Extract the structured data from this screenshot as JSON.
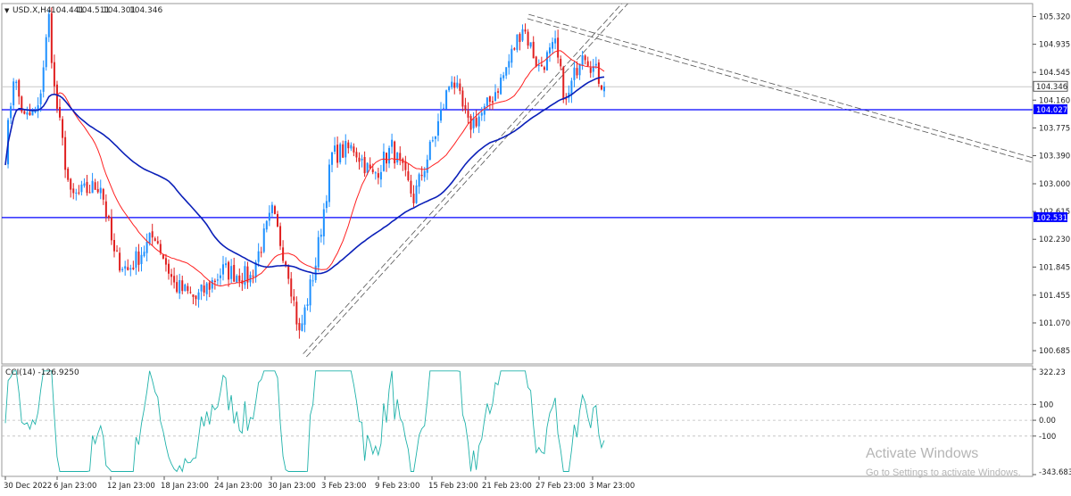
{
  "chart_header": {
    "symbol": "USD.X,H4",
    "open": "104.441",
    "high": "104.511",
    "low": "104.301",
    "close": "104.346"
  },
  "watermark": {
    "line1": "Activate Windows",
    "line2": "Go to Settings to activate Windows."
  },
  "chart_data": {
    "type": "candlestick",
    "price_axis": {
      "ticks": [
        "105.320",
        "104.935",
        "104.545",
        "104.160",
        "103.775",
        "103.390",
        "103.000",
        "102.615",
        "102.230",
        "101.845",
        "101.455",
        "101.070",
        "100.685"
      ],
      "range": [
        100.55,
        105.45
      ]
    },
    "current_price": {
      "label": "104.346",
      "value": 104.346
    },
    "horizontal_levels": [
      {
        "label": "104.027",
        "value": 104.027,
        "color": "#0000ff"
      },
      {
        "label": "102.531",
        "value": 102.531,
        "color": "#0000ff"
      }
    ],
    "time_axis": {
      "labels": [
        "30 Dec 2022",
        "6 Jan 23:00",
        "12 Jan 23:00",
        "18 Jan 23:00",
        "24 Jan 23:00",
        "30 Jan 23:00",
        "3 Feb 23:00",
        "9 Feb 23:00",
        "15 Feb 23:00",
        "21 Feb 23:00",
        "27 Feb 23:00",
        "3 Mar 23:00"
      ],
      "bar_count": 220
    },
    "price_anchors": [
      [
        0,
        103.4
      ],
      [
        3,
        104.5
      ],
      [
        7,
        103.9
      ],
      [
        12,
        104.0
      ],
      [
        16,
        105.3
      ],
      [
        18,
        104.3
      ],
      [
        24,
        102.8
      ],
      [
        35,
        103.0
      ],
      [
        40,
        102.0
      ],
      [
        45,
        101.8
      ],
      [
        55,
        102.3
      ],
      [
        62,
        101.6
      ],
      [
        70,
        101.4
      ],
      [
        80,
        101.8
      ],
      [
        90,
        101.7
      ],
      [
        98,
        102.6
      ],
      [
        104,
        101.8
      ],
      [
        108,
        100.9
      ],
      [
        114,
        101.9
      ],
      [
        120,
        103.4
      ],
      [
        128,
        103.5
      ],
      [
        135,
        103.1
      ],
      [
        142,
        103.5
      ],
      [
        150,
        102.8
      ],
      [
        158,
        103.7
      ],
      [
        164,
        104.5
      ],
      [
        170,
        103.8
      ],
      [
        176,
        104.0
      ],
      [
        183,
        104.5
      ],
      [
        190,
        105.2
      ],
      [
        196,
        104.6
      ],
      [
        202,
        104.9
      ],
      [
        206,
        104.1
      ],
      [
        212,
        104.9
      ],
      [
        216,
        104.6
      ],
      [
        220,
        104.346
      ]
    ],
    "series": [
      {
        "name": "",
        "kind": "ma",
        "color": "#ff2020",
        "period": 20
      },
      {
        "name": "",
        "kind": "ma",
        "color": "#0a1fb8",
        "period": 60
      }
    ],
    "candle_colors": {
      "up": "#1e90ff",
      "down": "#e02020"
    },
    "trendlines": [
      {
        "style": "double-dashed",
        "color": "#555555",
        "from": [
          110,
          100.62
        ],
        "to": [
          230,
          105.6
        ]
      },
      {
        "style": "double-dashed",
        "color": "#555555",
        "from": [
          192,
          105.32
        ],
        "to": [
          380,
          103.3
        ]
      }
    ],
    "grid": false
  },
  "indicator": {
    "label": "CCI(14) -126.9250",
    "ticks": [
      "322.23",
      "100",
      "0.00",
      "-100",
      "-343.6834"
    ],
    "range": [
      -343.6834,
      322.23
    ],
    "levels": [
      100,
      0,
      -100
    ],
    "color": "#20b2aa"
  }
}
